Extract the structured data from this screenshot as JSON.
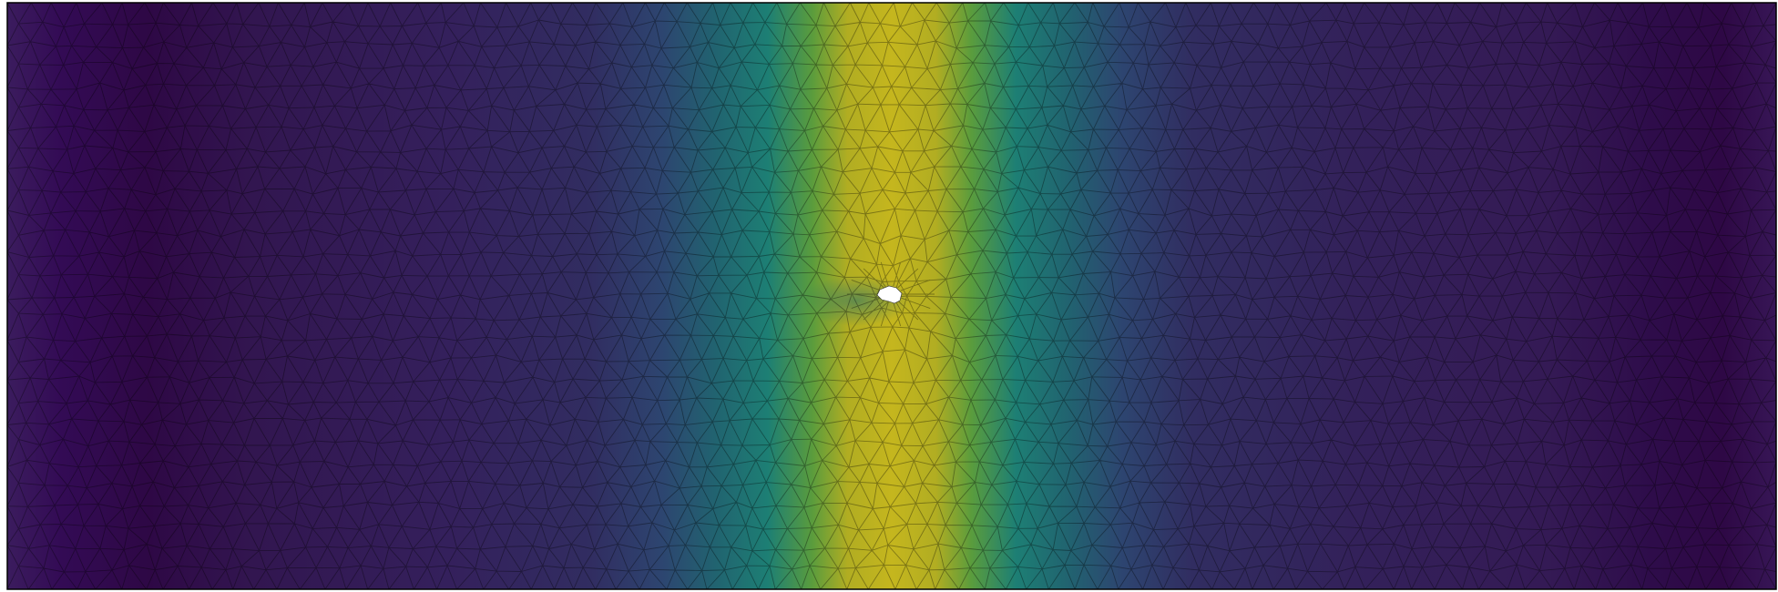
{
  "figure": {
    "kind": "finite element mesh with scalar field",
    "colormap": "viridis",
    "colors": {
      "low": "#440154",
      "mid": "#21918c",
      "high": "#c6b81c",
      "mesh_line": "#000000",
      "frame": "#000000",
      "hole": "#ffffff"
    },
    "field_peak_x_fraction": 0.5
  }
}
